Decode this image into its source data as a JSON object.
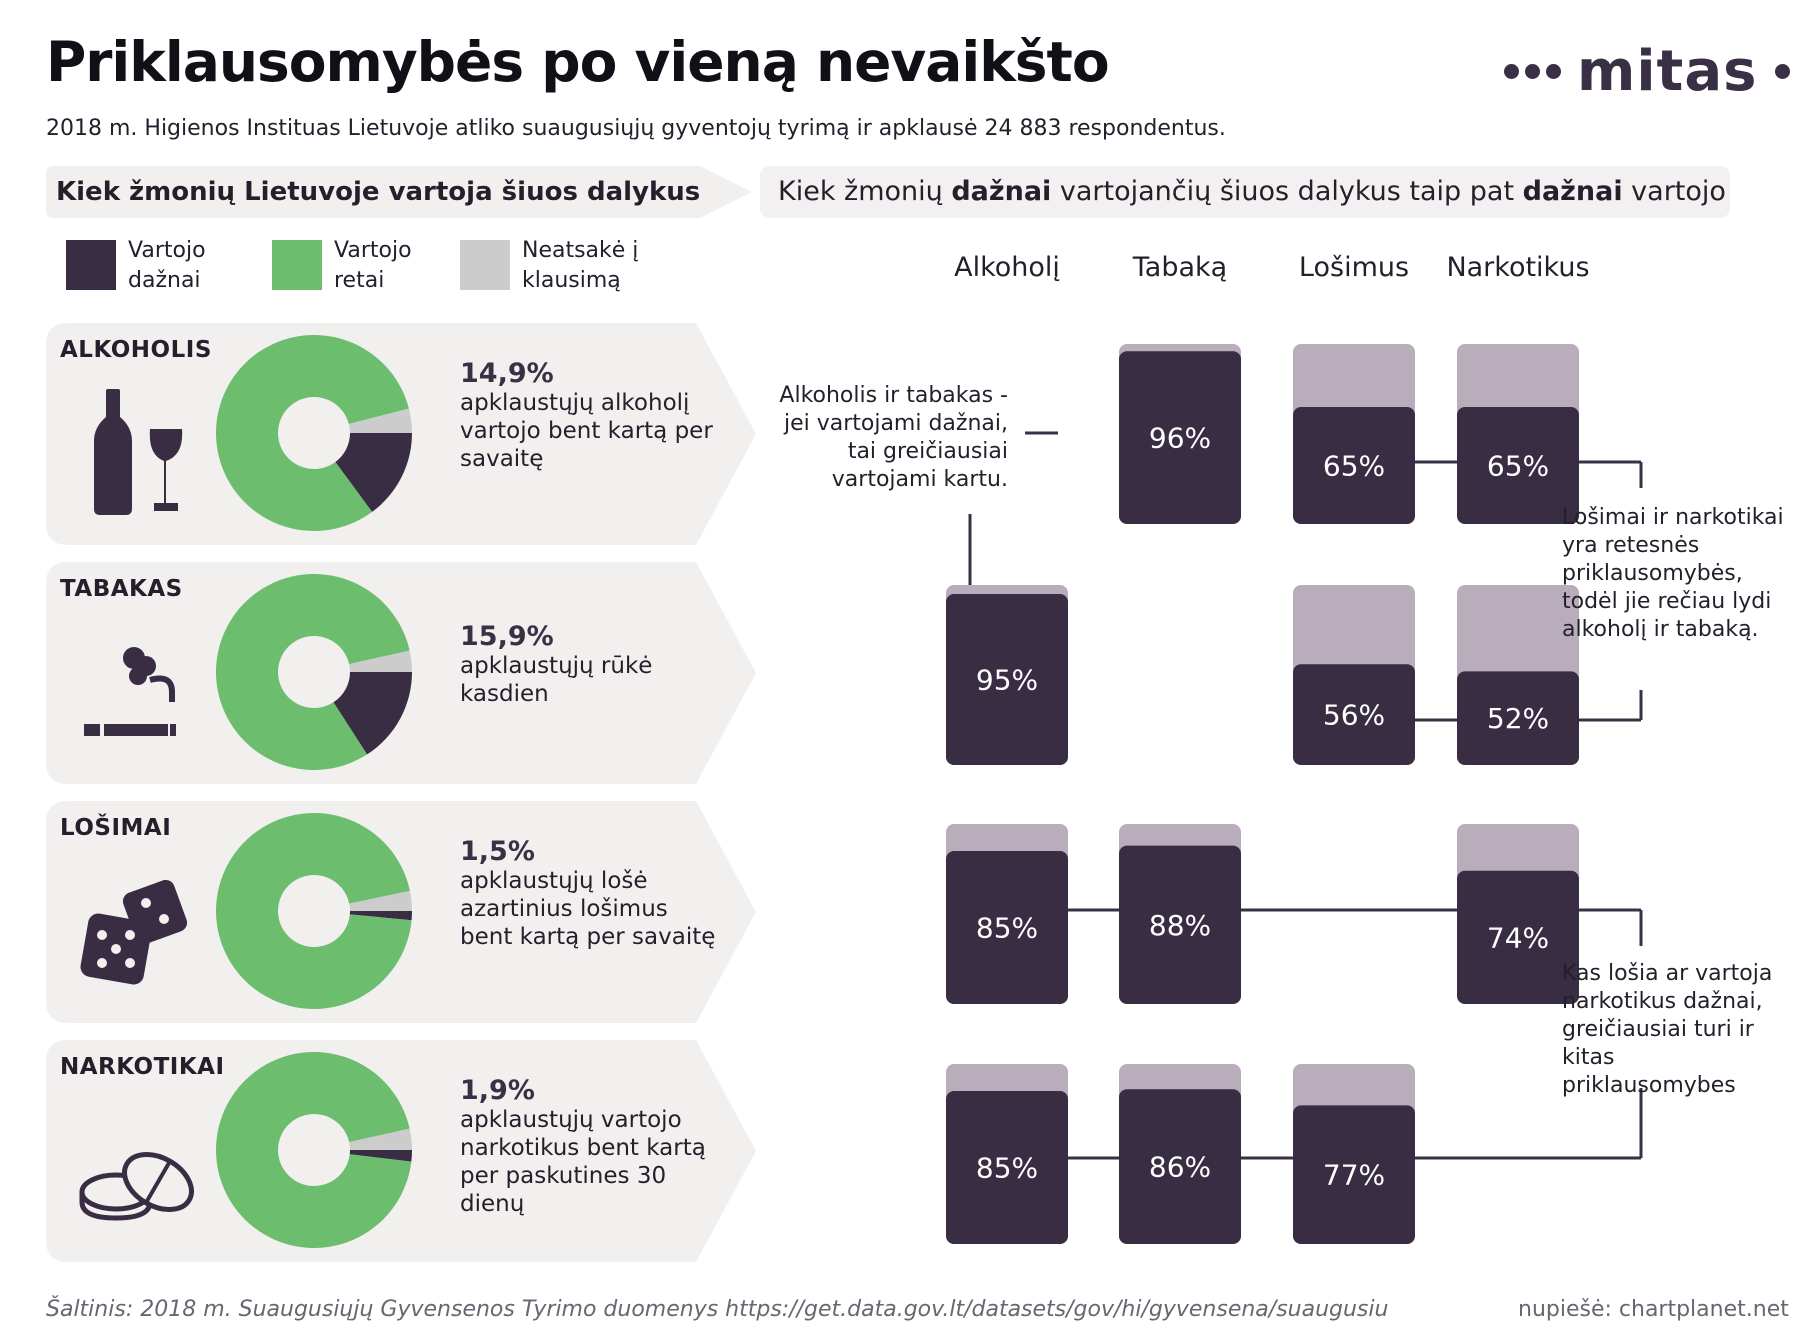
{
  "title": "Priklausomybės po vieną nevaikšto",
  "subtitle": "2018 m. Higienos Instituas Lietuvoje atliko suaugusiųjų gyventojų tyrimą ir apklausė 24 883 respondentus.",
  "logo": {
    "word": "mitas",
    "icon": "dots-logo-icon"
  },
  "left_heading": "Kiek žmonių Lietuvoje vartoja šiuos dalykus",
  "right_heading": {
    "part1": "Kiek žmonių ",
    "bold1": "dažnai",
    "part2": " vartojančių šiuos dalykus taip pat ",
    "bold2": "dažnai",
    "part3": " vartojo"
  },
  "legend": [
    {
      "label": "Vartojo dažnai",
      "color": "#382d42"
    },
    {
      "label": "Vartojo retai",
      "color": "#6cbd6e"
    },
    {
      "label": "Neatsakė į klausimą",
      "color": "#cccccc"
    }
  ],
  "colors": {
    "dark": "#382d42",
    "green": "#6cbd6e",
    "gray": "#cccccc",
    "light_bar": "#b9adbb",
    "panel_bg": "#f2efef"
  },
  "panels": [
    {
      "name": "ALKOHOLIS",
      "pct": "14,9%",
      "desc": "apklaustųjų alkoholį vartojo bent kartą per savaitę",
      "icon": "wine-bottle-glass-icon"
    },
    {
      "name": "TABAKAS",
      "pct": "15,9%",
      "desc": "apklaustųjų rūkė kasdien",
      "icon": "cigarette-smoke-icon"
    },
    {
      "name": "LOŠIMAI",
      "pct": "1,5%",
      "desc": "apklaustųjų lošė azartinius lošimus bent kartą per savaitę",
      "icon": "dice-icon"
    },
    {
      "name": "NARKOTIKAI",
      "pct": "1,9%",
      "desc": "apklaustųjų vartojo narkotikus bent kartą per paskutines 30 dienų",
      "icon": "pills-icon"
    }
  ],
  "annotations": {
    "alcohol_tobacco": "Alkoholis ir tabakas - jei vartojami dažnai, tai greičiausiai vartojami kartu.",
    "gambling_drugs": "Lošimai ir narkotikai yra retesnės priklausomybės, todėl jie rečiau lydi alkoholį ir tabaką.",
    "gamblers_users": "Kas lošia ar vartoja narkotikus dažnai, greičiausiai turi ir kitas priklausomybes"
  },
  "source": "Šaltinis: 2018 m. Suaugusiųjų Gyvensenos Tyrimo duomenys https://get.data.gov.lt/datasets/gov/hi/gyvensena/suaugusiu",
  "credit": "nupiešė: chartplanet.net",
  "chart_data": [
    {
      "type": "pie",
      "title": "Kiek žmonių Lietuvoje vartoja šiuos dalykus",
      "categories": [
        "Vartojo dažnai",
        "Vartojo retai",
        "Neatsakė į klausimą"
      ],
      "series": [
        {
          "name": "ALKOHOLIS",
          "values": [
            14.9,
            81.1,
            4.0
          ]
        },
        {
          "name": "TABAKAS",
          "values": [
            15.9,
            80.6,
            3.5
          ]
        },
        {
          "name": "LOŠIMAI",
          "values": [
            1.5,
            95.2,
            3.3
          ]
        },
        {
          "name": "NARKOTIKAI",
          "values": [
            1.9,
            94.6,
            3.5
          ]
        }
      ]
    },
    {
      "type": "bar",
      "title": "Kiek žmonių dažnai vartojančių šiuos dalykus taip pat dažnai vartojo",
      "categories": [
        "Alkoholį",
        "Tabaką",
        "Lošimus",
        "Narkotikus"
      ],
      "rows": [
        "ALKOHOLIS",
        "TABAKAS",
        "LOŠIMAI",
        "NARKOTIKAI"
      ],
      "series": [
        {
          "name": "ALKOHOLIS",
          "values": [
            null,
            96,
            65,
            65
          ]
        },
        {
          "name": "TABAKAS",
          "values": [
            95,
            null,
            56,
            52
          ]
        },
        {
          "name": "LOŠIMAI",
          "values": [
            85,
            88,
            null,
            74
          ]
        },
        {
          "name": "NARKOTIKAI",
          "values": [
            85,
            86,
            77,
            null
          ]
        }
      ],
      "ylim": [
        0,
        100
      ],
      "value_suffix": "%"
    }
  ]
}
